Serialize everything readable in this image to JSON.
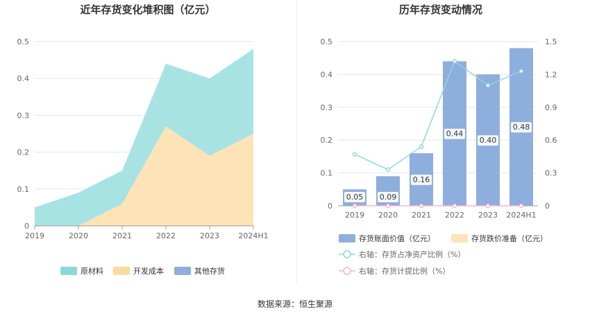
{
  "source": "数据来源：恒生聚源",
  "chart_data": [
    {
      "type": "area",
      "title": "近年存货变化堆积图（亿元）",
      "categories": [
        "2019",
        "2020",
        "2021",
        "2022",
        "2023",
        "2024H1"
      ],
      "y_ticks": [
        "0",
        "0.1",
        "0.2",
        "0.3",
        "0.4",
        "0.5"
      ],
      "ylim": [
        0,
        0.5
      ],
      "stacked": true,
      "series": [
        {
          "name": "开发成本",
          "values": [
            0,
            0,
            0.06,
            0.27,
            0.19,
            0.25
          ],
          "color": "#fde3b5"
        },
        {
          "name": "原材料",
          "values": [
            0.05,
            0.09,
            0.09,
            0.17,
            0.21,
            0.23
          ],
          "color": "#a8e3e3"
        },
        {
          "name": "其他存货",
          "values": [
            0,
            0,
            0,
            0,
            0,
            0
          ],
          "color": "#8eaedd"
        }
      ],
      "legend": [
        {
          "name": "原材料",
          "color": "#8dd9d9"
        },
        {
          "name": "开发成本",
          "color": "#fcd9a0"
        },
        {
          "name": "其他存货",
          "color": "#8eaedd"
        }
      ],
      "legend_position": "bottom",
      "grid": true
    },
    {
      "type": "bar",
      "title": "历年存货变动情况",
      "categories": [
        "2019",
        "2020",
        "2021",
        "2022",
        "2023",
        "2024H1"
      ],
      "y_ticks": [
        "0",
        "0.1",
        "0.2",
        "0.3",
        "0.4",
        "0.5"
      ],
      "y2_ticks": [
        "0",
        "0.3",
        "0.6",
        "0.9",
        "1.2",
        "1.5"
      ],
      "ylim": [
        0,
        0.5
      ],
      "y2lim": [
        0,
        1.5
      ],
      "series": [
        {
          "name": "存货账面价值（亿元）",
          "kind": "bar",
          "axis": "left",
          "values": [
            0.05,
            0.09,
            0.16,
            0.44,
            0.4,
            0.48
          ],
          "labels": [
            "0.05",
            "0.09",
            "0.16",
            "0.44",
            "0.40",
            "0.48"
          ],
          "color": "#8eaedd"
        },
        {
          "name": "存货跌价准备（亿元）",
          "kind": "bar",
          "axis": "left",
          "values": [
            0,
            0,
            0,
            0,
            0,
            0
          ],
          "color": "#fde3b5"
        },
        {
          "name": "右轴：存货占净资产比例（%）",
          "kind": "line",
          "axis": "right",
          "values": [
            0.47,
            0.33,
            0.54,
            1.32,
            1.1,
            1.23
          ],
          "color": "#8dd9d9"
        },
        {
          "name": "右轴：存货计提比例（%）",
          "kind": "line",
          "axis": "right",
          "values": [
            0,
            0,
            0,
            0,
            0,
            0
          ],
          "color": "#f0b3d3"
        }
      ],
      "legend_position": "bottom",
      "grid": true
    }
  ]
}
